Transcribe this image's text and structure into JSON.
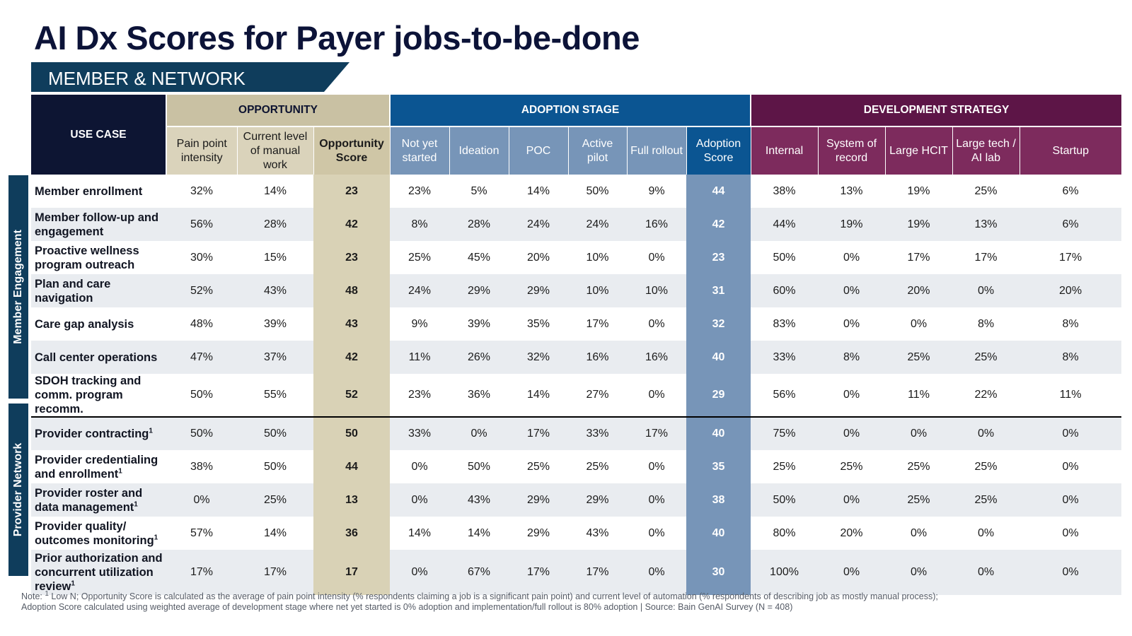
{
  "title": "AI Dx Scores for Payer jobs-to-be-done",
  "banner": "MEMBER & NETWORK",
  "headers": {
    "use_case": "USE CASE",
    "groups": {
      "opportunity": "OPPORTUNITY",
      "adoption": "ADOPTION STAGE",
      "development": "DEVELOPMENT STRATEGY"
    },
    "opportunity": [
      "Pain point intensity",
      "Current level of manual work",
      "Opportunity Score"
    ],
    "adoption": [
      "Not yet started",
      "Ideation",
      "POC",
      "Active pilot",
      "Full rollout",
      "Adoption Score"
    ],
    "development": [
      "Internal",
      "System of record",
      "Large HCIT",
      "Large tech / AI lab",
      "Startup"
    ]
  },
  "sections": {
    "member_engagement": "Member Engagement",
    "provider_network": "Provider Network"
  },
  "rows": [
    {
      "use_case": "Member enrollment",
      "sup": "",
      "pain": "32%",
      "manual": "14%",
      "opp": "23",
      "not_yet": "23%",
      "ideation": "5%",
      "poc": "14%",
      "pilot": "50%",
      "rollout": "9%",
      "adopt": "44",
      "internal": "38%",
      "sor": "13%",
      "hcit": "19%",
      "ailab": "25%",
      "startup": "6%"
    },
    {
      "use_case": "Member follow-up and engagement",
      "sup": "",
      "pain": "56%",
      "manual": "28%",
      "opp": "42",
      "not_yet": "8%",
      "ideation": "28%",
      "poc": "24%",
      "pilot": "24%",
      "rollout": "16%",
      "adopt": "42",
      "internal": "44%",
      "sor": "19%",
      "hcit": "19%",
      "ailab": "13%",
      "startup": "6%"
    },
    {
      "use_case": "Proactive wellness program outreach",
      "sup": "",
      "pain": "30%",
      "manual": "15%",
      "opp": "23",
      "not_yet": "25%",
      "ideation": "45%",
      "poc": "20%",
      "pilot": "10%",
      "rollout": "0%",
      "adopt": "23",
      "internal": "50%",
      "sor": "0%",
      "hcit": "17%",
      "ailab": "17%",
      "startup": "17%"
    },
    {
      "use_case": "Plan and care navigation",
      "sup": "",
      "pain": "52%",
      "manual": "43%",
      "opp": "48",
      "not_yet": "24%",
      "ideation": "29%",
      "poc": "29%",
      "pilot": "10%",
      "rollout": "10%",
      "adopt": "31",
      "internal": "60%",
      "sor": "0%",
      "hcit": "20%",
      "ailab": "0%",
      "startup": "20%"
    },
    {
      "use_case": "Care gap analysis",
      "sup": "",
      "pain": "48%",
      "manual": "39%",
      "opp": "43",
      "not_yet": "9%",
      "ideation": "39%",
      "poc": "35%",
      "pilot": "17%",
      "rollout": "0%",
      "adopt": "32",
      "internal": "83%",
      "sor": "0%",
      "hcit": "0%",
      "ailab": "8%",
      "startup": "8%"
    },
    {
      "use_case": "Call center operations",
      "sup": "",
      "pain": "47%",
      "manual": "37%",
      "opp": "42",
      "not_yet": "11%",
      "ideation": "26%",
      "poc": "32%",
      "pilot": "16%",
      "rollout": "16%",
      "adopt": "40",
      "internal": "33%",
      "sor": "8%",
      "hcit": "25%",
      "ailab": "25%",
      "startup": "8%"
    },
    {
      "use_case": "SDOH tracking and comm. program recomm.",
      "sup": "",
      "pain": "50%",
      "manual": "55%",
      "opp": "52",
      "not_yet": "23%",
      "ideation": "36%",
      "poc": "14%",
      "pilot": "27%",
      "rollout": "0%",
      "adopt": "29",
      "internal": "56%",
      "sor": "0%",
      "hcit": "11%",
      "ailab": "22%",
      "startup": "11%"
    },
    {
      "use_case": "Provider contracting",
      "sup": "1",
      "pain": "50%",
      "manual": "50%",
      "opp": "50",
      "not_yet": "33%",
      "ideation": "0%",
      "poc": "17%",
      "pilot": "33%",
      "rollout": "17%",
      "adopt": "40",
      "internal": "75%",
      "sor": "0%",
      "hcit": "0%",
      "ailab": "0%",
      "startup": "0%"
    },
    {
      "use_case": "Provider credentialing and enrollment",
      "sup": "1",
      "pain": "38%",
      "manual": "50%",
      "opp": "44",
      "not_yet": "0%",
      "ideation": "50%",
      "poc": "25%",
      "pilot": "25%",
      "rollout": "0%",
      "adopt": "35",
      "internal": "25%",
      "sor": "25%",
      "hcit": "25%",
      "ailab": "25%",
      "startup": "0%"
    },
    {
      "use_case": "Provider roster and data management",
      "sup": "1",
      "pain": "0%",
      "manual": "25%",
      "opp": "13",
      "not_yet": "0%",
      "ideation": "43%",
      "poc": "29%",
      "pilot": "29%",
      "rollout": "0%",
      "adopt": "38",
      "internal": "50%",
      "sor": "0%",
      "hcit": "25%",
      "ailab": "25%",
      "startup": "0%"
    },
    {
      "use_case": "Provider quality/ outcomes monitoring",
      "sup": "1",
      "pain": "57%",
      "manual": "14%",
      "opp": "36",
      "not_yet": "14%",
      "ideation": "14%",
      "poc": "29%",
      "pilot": "43%",
      "rollout": "0%",
      "adopt": "40",
      "internal": "80%",
      "sor": "20%",
      "hcit": "0%",
      "ailab": "0%",
      "startup": "0%"
    },
    {
      "use_case": "Prior authorization and concurrent utilization review",
      "sup": "1",
      "pain": "17%",
      "manual": "17%",
      "opp": "17",
      "not_yet": "0%",
      "ideation": "67%",
      "poc": "17%",
      "pilot": "17%",
      "rollout": "0%",
      "adopt": "30",
      "internal": "100%",
      "sor": "0%",
      "hcit": "0%",
      "ailab": "0%",
      "startup": "0%"
    }
  ],
  "note": {
    "prefix": "Note: ",
    "sup": "1",
    "text": " Low N; Opportunity Score is calculated as the average of pain point intensity (% respondents claiming a job is a significant pain point) and current level of automation (% respondents of describing job as mostly manual process); Adoption Score calculated using weighted average of development stage where net yet started is 0% adoption and implementation/full rollout is 80% adoption | Source: Bain GenAI Survey (N = 408)"
  }
}
